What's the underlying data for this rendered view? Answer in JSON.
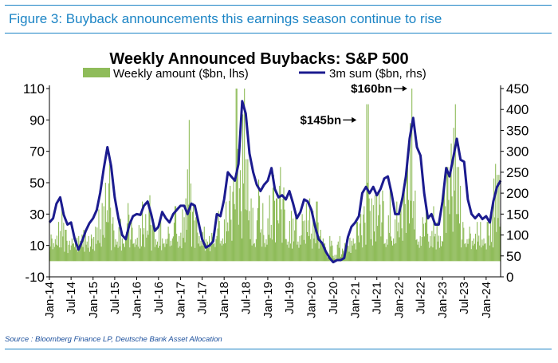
{
  "figure_title": "Figure 3: Buyback announcements this earnings season continue to rise",
  "source": "Source : Bloomberg Finance LP, Deutsche Bank Asset Allocation",
  "chart_data": {
    "type": "bar+line",
    "title": "Weekly Announced Buybacks: S&P 500",
    "legend_position": "top",
    "grid": false,
    "x_axis": {
      "start": "2014-01",
      "end": "2024-05",
      "tick_labels": [
        "Jan-14",
        "Jul-14",
        "Jan-15",
        "Jul-15",
        "Jan-16",
        "Jul-16",
        "Jan-17",
        "Jul-17",
        "Jan-18",
        "Jul-18",
        "Jan-19",
        "Jul-19",
        "Jan-20",
        "Jul-20",
        "Jan-21",
        "Jul-21",
        "Jan-22",
        "Jul-22",
        "Jan-23",
        "Jul-23",
        "Jan-24"
      ]
    },
    "y_left": {
      "min": -10,
      "max": 110,
      "ticks": [
        -10,
        10,
        30,
        50,
        70,
        90,
        110
      ]
    },
    "y_right": {
      "min": 0,
      "max": 450,
      "ticks": [
        0,
        50,
        100,
        150,
        200,
        250,
        300,
        350,
        400,
        450
      ]
    },
    "annotations": [
      {
        "text": "$160bn",
        "date": "2022-04",
        "axis_value": 110
      },
      {
        "text": "$145bn",
        "date": "2021-02",
        "axis_value": 90
      }
    ],
    "series": [
      {
        "name": "Weekly amount ($bn, lhs)",
        "type": "bar",
        "axis": "left",
        "color": "#8fbc5a",
        "step": "weekly",
        "values_by_month": [
          [
            "2014-01",
            17
          ],
          [
            "2014-03",
            25
          ],
          [
            "2014-04",
            35
          ],
          [
            "2014-05",
            20
          ],
          [
            "2014-06",
            13
          ],
          [
            "2014-08",
            15
          ],
          [
            "2014-10",
            20
          ],
          [
            "2014-12",
            17
          ],
          [
            "2015-01",
            22
          ],
          [
            "2015-02",
            33
          ],
          [
            "2015-03",
            37
          ],
          [
            "2015-04",
            50
          ],
          [
            "2015-05",
            62
          ],
          [
            "2015-06",
            28
          ],
          [
            "2015-08",
            27
          ],
          [
            "2015-10",
            37
          ],
          [
            "2015-11",
            25
          ],
          [
            "2016-01",
            23
          ],
          [
            "2016-02",
            38
          ],
          [
            "2016-03",
            30
          ],
          [
            "2016-04",
            42
          ],
          [
            "2016-05",
            27
          ],
          [
            "2016-07",
            28
          ],
          [
            "2016-09",
            22
          ],
          [
            "2016-11",
            35
          ],
          [
            "2017-01",
            33
          ],
          [
            "2017-02",
            40
          ],
          [
            "2017-03",
            90
          ],
          [
            "2017-04",
            37
          ],
          [
            "2017-05",
            28
          ],
          [
            "2017-07",
            22
          ],
          [
            "2017-09",
            18
          ],
          [
            "2017-11",
            32
          ],
          [
            "2018-01",
            38
          ],
          [
            "2018-02",
            48
          ],
          [
            "2018-03",
            52
          ],
          [
            "2018-04",
            110
          ],
          [
            "2018-05",
            58
          ],
          [
            "2018-06",
            110
          ],
          [
            "2018-07",
            65
          ],
          [
            "2018-08",
            40
          ],
          [
            "2018-10",
            52
          ],
          [
            "2018-11",
            37
          ],
          [
            "2019-01",
            42
          ],
          [
            "2019-02",
            55
          ],
          [
            "2019-03",
            40
          ],
          [
            "2019-04",
            60
          ],
          [
            "2019-05",
            47
          ],
          [
            "2019-07",
            32
          ],
          [
            "2019-08",
            28
          ],
          [
            "2019-10",
            30
          ],
          [
            "2019-11",
            37
          ],
          [
            "2019-12",
            40
          ],
          [
            "2020-01",
            32
          ],
          [
            "2020-02",
            38
          ],
          [
            "2020-03",
            20
          ],
          [
            "2020-05",
            5
          ],
          [
            "2020-07",
            4
          ],
          [
            "2020-09",
            8
          ],
          [
            "2020-11",
            15
          ],
          [
            "2021-01",
            25
          ],
          [
            "2021-02",
            30
          ],
          [
            "2021-03",
            35
          ],
          [
            "2021-04",
            100
          ],
          [
            "2021-05",
            40
          ],
          [
            "2021-06",
            42
          ],
          [
            "2021-07",
            45
          ],
          [
            "2021-08",
            45
          ],
          [
            "2021-10",
            45
          ],
          [
            "2021-12",
            38
          ],
          [
            "2022-01",
            38
          ],
          [
            "2022-02",
            52
          ],
          [
            "2022-03",
            60
          ],
          [
            "2022-04",
            110
          ],
          [
            "2022-05",
            45
          ],
          [
            "2022-07",
            28
          ],
          [
            "2022-08",
            35
          ],
          [
            "2022-10",
            35
          ],
          [
            "2022-11",
            25
          ],
          [
            "2023-01",
            50
          ],
          [
            "2023-02",
            60
          ],
          [
            "2023-03",
            75
          ],
          [
            "2023-04",
            100
          ],
          [
            "2023-05",
            60
          ],
          [
            "2023-06",
            25
          ],
          [
            "2023-08",
            22
          ],
          [
            "2023-10",
            25
          ],
          [
            "2023-11",
            25
          ],
          [
            "2024-01",
            25
          ],
          [
            "2024-02",
            35
          ],
          [
            "2024-03",
            62
          ],
          [
            "2024-04",
            55
          ],
          [
            "2024-05",
            30
          ]
        ]
      },
      {
        "name": "3m sum ($bn, rhs)",
        "type": "line",
        "axis": "right",
        "color": "#1b1b8f",
        "points": [
          [
            "2014-01",
            130
          ],
          [
            "2014-02",
            140
          ],
          [
            "2014-03",
            175
          ],
          [
            "2014-04",
            190
          ],
          [
            "2014-05",
            148
          ],
          [
            "2014-06",
            125
          ],
          [
            "2014-07",
            130
          ],
          [
            "2014-08",
            90
          ],
          [
            "2014-09",
            65
          ],
          [
            "2014-10",
            85
          ],
          [
            "2014-11",
            110
          ],
          [
            "2014-12",
            128
          ],
          [
            "2015-01",
            140
          ],
          [
            "2015-02",
            160
          ],
          [
            "2015-03",
            200
          ],
          [
            "2015-04",
            260
          ],
          [
            "2015-05",
            310
          ],
          [
            "2015-06",
            265
          ],
          [
            "2015-07",
            190
          ],
          [
            "2015-08",
            140
          ],
          [
            "2015-09",
            100
          ],
          [
            "2015-10",
            90
          ],
          [
            "2015-11",
            125
          ],
          [
            "2015-12",
            145
          ],
          [
            "2016-01",
            150
          ],
          [
            "2016-02",
            148
          ],
          [
            "2016-03",
            170
          ],
          [
            "2016-04",
            180
          ],
          [
            "2016-05",
            150
          ],
          [
            "2016-06",
            110
          ],
          [
            "2016-07",
            120
          ],
          [
            "2016-08",
            155
          ],
          [
            "2016-09",
            140
          ],
          [
            "2016-10",
            130
          ],
          [
            "2016-11",
            150
          ],
          [
            "2016-12",
            160
          ],
          [
            "2017-01",
            170
          ],
          [
            "2017-02",
            170
          ],
          [
            "2017-03",
            150
          ],
          [
            "2017-04",
            175
          ],
          [
            "2017-05",
            170
          ],
          [
            "2017-06",
            130
          ],
          [
            "2017-07",
            90
          ],
          [
            "2017-08",
            70
          ],
          [
            "2017-09",
            75
          ],
          [
            "2017-10",
            85
          ],
          [
            "2017-11",
            150
          ],
          [
            "2017-12",
            145
          ],
          [
            "2018-01",
            185
          ],
          [
            "2018-02",
            250
          ],
          [
            "2018-03",
            240
          ],
          [
            "2018-04",
            230
          ],
          [
            "2018-05",
            270
          ],
          [
            "2018-06",
            420
          ],
          [
            "2018-07",
            390
          ],
          [
            "2018-08",
            295
          ],
          [
            "2018-09",
            250
          ],
          [
            "2018-10",
            220
          ],
          [
            "2018-11",
            205
          ],
          [
            "2018-12",
            220
          ],
          [
            "2019-01",
            230
          ],
          [
            "2019-02",
            260
          ],
          [
            "2019-03",
            210
          ],
          [
            "2019-04",
            190
          ],
          [
            "2019-05",
            195
          ],
          [
            "2019-06",
            185
          ],
          [
            "2019-07",
            205
          ],
          [
            "2019-08",
            175
          ],
          [
            "2019-09",
            140
          ],
          [
            "2019-10",
            155
          ],
          [
            "2019-11",
            185
          ],
          [
            "2019-12",
            180
          ],
          [
            "2020-01",
            160
          ],
          [
            "2020-02",
            120
          ],
          [
            "2020-03",
            90
          ],
          [
            "2020-04",
            80
          ],
          [
            "2020-05",
            60
          ],
          [
            "2020-06",
            45
          ],
          [
            "2020-07",
            35
          ],
          [
            "2020-08",
            40
          ],
          [
            "2020-09",
            40
          ],
          [
            "2020-10",
            45
          ],
          [
            "2020-11",
            95
          ],
          [
            "2020-12",
            120
          ],
          [
            "2021-01",
            130
          ],
          [
            "2021-02",
            145
          ],
          [
            "2021-03",
            200
          ],
          [
            "2021-04",
            215
          ],
          [
            "2021-05",
            200
          ],
          [
            "2021-06",
            215
          ],
          [
            "2021-07",
            195
          ],
          [
            "2021-08",
            210
          ],
          [
            "2021-09",
            235
          ],
          [
            "2021-10",
            240
          ],
          [
            "2021-11",
            200
          ],
          [
            "2021-12",
            150
          ],
          [
            "2022-01",
            150
          ],
          [
            "2022-02",
            190
          ],
          [
            "2022-03",
            240
          ],
          [
            "2022-04",
            330
          ],
          [
            "2022-05",
            380
          ],
          [
            "2022-06",
            310
          ],
          [
            "2022-07",
            290
          ],
          [
            "2022-08",
            200
          ],
          [
            "2022-09",
            140
          ],
          [
            "2022-10",
            150
          ],
          [
            "2022-11",
            125
          ],
          [
            "2022-12",
            125
          ],
          [
            "2023-01",
            180
          ],
          [
            "2023-02",
            260
          ],
          [
            "2023-03",
            240
          ],
          [
            "2023-04",
            285
          ],
          [
            "2023-05",
            330
          ],
          [
            "2023-06",
            280
          ],
          [
            "2023-07",
            275
          ],
          [
            "2023-08",
            185
          ],
          [
            "2023-09",
            150
          ],
          [
            "2023-10",
            140
          ],
          [
            "2023-11",
            150
          ],
          [
            "2023-12",
            138
          ],
          [
            "2024-01",
            145
          ],
          [
            "2024-02",
            130
          ],
          [
            "2024-03",
            180
          ],
          [
            "2024-04",
            215
          ],
          [
            "2024-05",
            230
          ]
        ]
      }
    ]
  }
}
